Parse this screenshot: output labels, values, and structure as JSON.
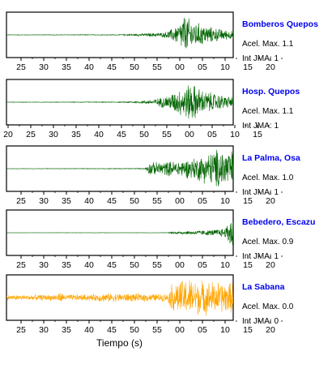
{
  "chart_data": {
    "type": "line",
    "xlabel": "Tiempo (s)",
    "panels": [
      {
        "station": "Bomberos Quepos",
        "accel_label": "Acel. Max. 1.1",
        "jma_label": "Int JMA: 1",
        "color": "#006400",
        "x_tick_labels": [
          "25",
          "30",
          "35",
          "40",
          "45",
          "50",
          "55",
          "00",
          "05",
          "10",
          "15",
          "20"
        ],
        "xlim": [
          21,
          80
        ],
        "envelope": [
          {
            "t": 21,
            "amp": 0.01
          },
          {
            "t": 50,
            "amp": 0.02
          },
          {
            "t": 55,
            "amp": 0.05
          },
          {
            "t": 62,
            "amp": 0.12
          },
          {
            "t": 64,
            "amp": 0.3
          },
          {
            "t": 66,
            "amp": 0.55
          },
          {
            "t": 67,
            "amp": 1.0
          },
          {
            "t": 70,
            "amp": 0.65
          },
          {
            "t": 74,
            "amp": 0.4
          },
          {
            "t": 78,
            "amp": 0.25
          },
          {
            "t": 80,
            "amp": 0.2
          }
        ]
      },
      {
        "station": "Hosp. Quepos",
        "accel_label": "Acel. Max. 1.1",
        "jma_label": "Int JMA: 1",
        "color": "#006400",
        "x_tick_labels": [
          "20",
          "25",
          "30",
          "35",
          "40",
          "45",
          "50",
          "55",
          "00",
          "05",
          "10",
          "15"
        ],
        "xlim": [
          20,
          79
        ],
        "envelope": [
          {
            "t": 20,
            "amp": 0.01
          },
          {
            "t": 50,
            "amp": 0.02
          },
          {
            "t": 55,
            "amp": 0.06
          },
          {
            "t": 58,
            "amp": 0.12
          },
          {
            "t": 62,
            "amp": 0.35
          },
          {
            "t": 66,
            "amp": 0.75
          },
          {
            "t": 68,
            "amp": 1.0
          },
          {
            "t": 71,
            "amp": 0.6
          },
          {
            "t": 75,
            "amp": 0.4
          },
          {
            "t": 79,
            "amp": 0.25
          }
        ]
      },
      {
        "station": "La Palma, Osa",
        "accel_label": "Acel. Max. 1.0",
        "jma_label": "Int JMA: 1",
        "color": "#006400",
        "x_tick_labels": [
          "25",
          "30",
          "35",
          "40",
          "45",
          "50",
          "55",
          "00",
          "05",
          "10",
          "15",
          "20"
        ],
        "xlim": [
          21,
          80
        ],
        "envelope": [
          {
            "t": 21,
            "amp": 0.01
          },
          {
            "t": 57,
            "amp": 0.02
          },
          {
            "t": 58,
            "amp": 0.3
          },
          {
            "t": 62,
            "amp": 0.35
          },
          {
            "t": 66,
            "amp": 0.4
          },
          {
            "t": 70,
            "amp": 0.55
          },
          {
            "t": 73,
            "amp": 0.75
          },
          {
            "t": 76,
            "amp": 1.0
          },
          {
            "t": 80,
            "amp": 0.9
          }
        ]
      },
      {
        "station": "Bebedero, Escazu",
        "accel_label": "Acel. Max. 0.9",
        "jma_label": "Int JMA: 1",
        "color": "#006400",
        "x_tick_labels": [
          "25",
          "30",
          "35",
          "40",
          "45",
          "50",
          "55",
          "00",
          "05",
          "10",
          "15",
          "20"
        ],
        "xlim": [
          21,
          80
        ],
        "envelope": [
          {
            "t": 21,
            "amp": 0.005
          },
          {
            "t": 63,
            "amp": 0.01
          },
          {
            "t": 64,
            "amp": 0.06
          },
          {
            "t": 70,
            "amp": 0.1
          },
          {
            "t": 75,
            "amp": 0.15
          },
          {
            "t": 78,
            "amp": 0.25
          },
          {
            "t": 79,
            "amp": 0.7
          },
          {
            "t": 80,
            "amp": 1.0
          }
        ]
      },
      {
        "station": "La Sabana",
        "accel_label": "Acel. Max. 0.0",
        "jma_label": "Int JMA: 0",
        "color": "#ffa500",
        "x_tick_labels": [
          "25",
          "30",
          "35",
          "40",
          "45",
          "50",
          "55",
          "00",
          "05",
          "10",
          "15",
          "20"
        ],
        "xlim": [
          21,
          80
        ],
        "envelope": [
          {
            "t": 21,
            "amp": 0.12
          },
          {
            "t": 34,
            "amp": 0.15
          },
          {
            "t": 35,
            "amp": 0.28
          },
          {
            "t": 36,
            "amp": 0.15
          },
          {
            "t": 44,
            "amp": 0.16
          },
          {
            "t": 45,
            "amp": 0.22
          },
          {
            "t": 63,
            "amp": 0.18
          },
          {
            "t": 64,
            "amp": 0.7
          },
          {
            "t": 68,
            "amp": 0.95
          },
          {
            "t": 72,
            "amp": 0.85
          },
          {
            "t": 76,
            "amp": 0.8
          },
          {
            "t": 80,
            "amp": 0.75
          }
        ]
      }
    ]
  }
}
